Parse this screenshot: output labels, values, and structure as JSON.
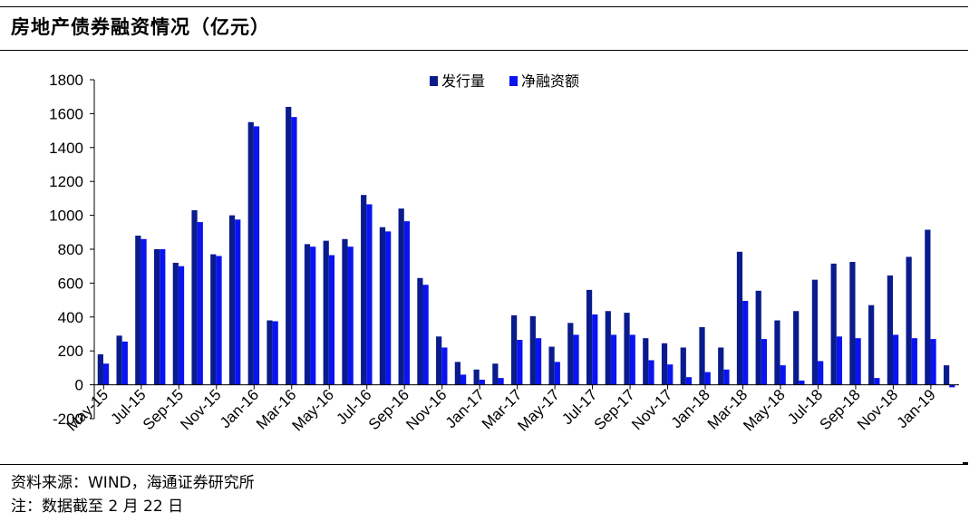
{
  "header": {
    "title": "房地产债券融资情况（亿元）"
  },
  "footer": {
    "source": "资料来源：WIND，海通证券研究所",
    "note": "注：数据截至 2 月 22 日"
  },
  "colors": {
    "issuance": "#0a1b8c",
    "net_financing": "#0a14f0"
  },
  "chart_data": {
    "type": "bar",
    "title": "房地产债券融资情况（亿元）",
    "xlabel": "",
    "ylabel": "",
    "ylim": [
      -200,
      1800
    ],
    "yticks": [
      -200,
      0,
      200,
      400,
      600,
      800,
      1000,
      1200,
      1400,
      1600,
      1800
    ],
    "grid": false,
    "legend_position": "top",
    "categories": [
      "May-15",
      "Jun-15",
      "Jul-15",
      "Aug-15",
      "Sep-15",
      "Oct-15",
      "Nov-15",
      "Dec-15",
      "Jan-16",
      "Feb-16",
      "Mar-16",
      "Apr-16",
      "May-16",
      "Jun-16",
      "Jul-16",
      "Aug-16",
      "Sep-16",
      "Oct-16",
      "Nov-16",
      "Dec-16",
      "Jan-17",
      "Feb-17",
      "Mar-17",
      "Apr-17",
      "May-17",
      "Jun-17",
      "Jul-17",
      "Aug-17",
      "Sep-17",
      "Oct-17",
      "Nov-17",
      "Dec-17",
      "Jan-18",
      "Feb-18",
      "Mar-18",
      "Apr-18",
      "May-18",
      "Jun-18",
      "Jul-18",
      "Aug-18",
      "Sep-18",
      "Oct-18",
      "Nov-18",
      "Dec-18",
      "Jan-19",
      "Feb-19"
    ],
    "tick_labels": [
      "May-15",
      "Jul-15",
      "Sep-15",
      "Nov-15",
      "Jan-16",
      "Mar-16",
      "May-16",
      "Jul-16",
      "Sep-16",
      "Nov-16",
      "Jan-17",
      "Mar-17",
      "May-17",
      "Jul-17",
      "Sep-17",
      "Nov-17",
      "Jan-18",
      "Mar-18",
      "May-18",
      "Jul-18",
      "Sep-18",
      "Nov-18",
      "Jan-19"
    ],
    "series": [
      {
        "name": "发行量",
        "values": [
          180,
          290,
          880,
          800,
          720,
          1030,
          770,
          1000,
          1550,
          380,
          1640,
          830,
          850,
          860,
          1120,
          930,
          1040,
          630,
          285,
          135,
          90,
          125,
          410,
          405,
          225,
          365,
          560,
          435,
          425,
          275,
          245,
          220,
          340,
          220,
          785,
          555,
          380,
          435,
          620,
          715,
          725,
          470,
          645,
          755,
          915,
          115
        ]
      },
      {
        "name": "净融资额",
        "values": [
          125,
          255,
          860,
          800,
          700,
          960,
          760,
          975,
          1525,
          375,
          1580,
          815,
          765,
          815,
          1065,
          905,
          965,
          590,
          220,
          60,
          30,
          40,
          265,
          275,
          135,
          295,
          415,
          295,
          295,
          145,
          120,
          45,
          75,
          90,
          495,
          270,
          115,
          25,
          140,
          285,
          275,
          40,
          295,
          275,
          270,
          -15
        ]
      }
    ]
  }
}
